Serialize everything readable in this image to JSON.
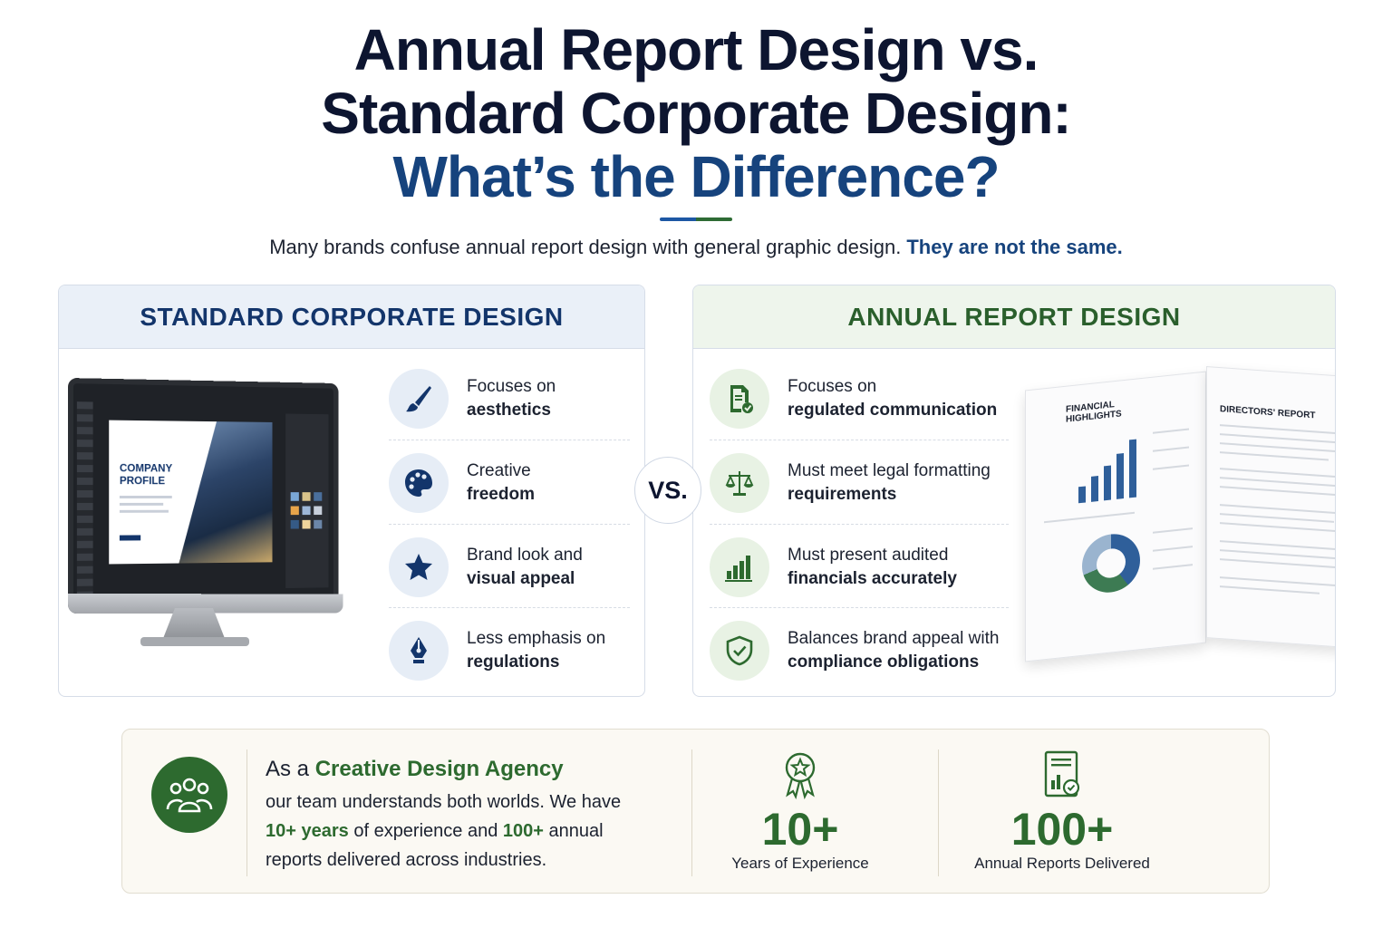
{
  "header": {
    "title_line1": "Annual Report Design vs.",
    "title_line2": "Standard Corporate Design:",
    "title_line3": "What’s the Difference?",
    "subtitle": "Many brands confuse annual report design with general graphic design.",
    "subtitle_emphasis": "They are not the same."
  },
  "vs_label": "VS.",
  "left_panel": {
    "heading": "STANDARD CORPORATE DESIGN",
    "mockup_label": "COMPANY PROFILE",
    "features": [
      {
        "icon": "paintbrush-icon",
        "line1": "Focuses on",
        "line2": "aesthetics"
      },
      {
        "icon": "palette-icon",
        "line1": "Creative",
        "line2": "freedom"
      },
      {
        "icon": "star-icon",
        "line1": "Brand look and",
        "line2": "visual appeal"
      },
      {
        "icon": "pen-nib-icon",
        "line1": "Less emphasis on",
        "line2": "regulations"
      }
    ]
  },
  "right_panel": {
    "heading": "ANNUAL REPORT DESIGN",
    "book_left_title": "FINANCIAL HIGHLIGHTS",
    "book_right_title": "DIRECTORS' REPORT",
    "features": [
      {
        "icon": "document-check-icon",
        "line1": "Focuses on",
        "line2": "regulated communication"
      },
      {
        "icon": "scales-icon",
        "line1": "Must meet legal formatting",
        "line2": "requirements"
      },
      {
        "icon": "bar-chart-icon",
        "line1": "Must present audited",
        "line2": "financials accurately"
      },
      {
        "icon": "shield-check-icon",
        "line1": "Balances brand appeal with",
        "line2": "compliance obligations"
      }
    ]
  },
  "bottom": {
    "agency_prefix": "As a",
    "agency_name": "Creative Design Agency",
    "body_part1": "our team understands both worlds. We have",
    "years_highlight": "10+ years",
    "body_part2": "of experience and",
    "reports_highlight": "100+",
    "body_part3": "annual",
    "body_part4": "reports delivered across industries.",
    "stats": [
      {
        "icon": "award-ribbon-icon",
        "value": "10+",
        "label": "Years of Experience"
      },
      {
        "icon": "report-document-icon",
        "value": "100+",
        "label": "Annual Reports Delivered"
      }
    ]
  },
  "colors": {
    "navy": "#0d1530",
    "blue_accent": "#16437d",
    "green_accent": "#2d6a2f"
  }
}
